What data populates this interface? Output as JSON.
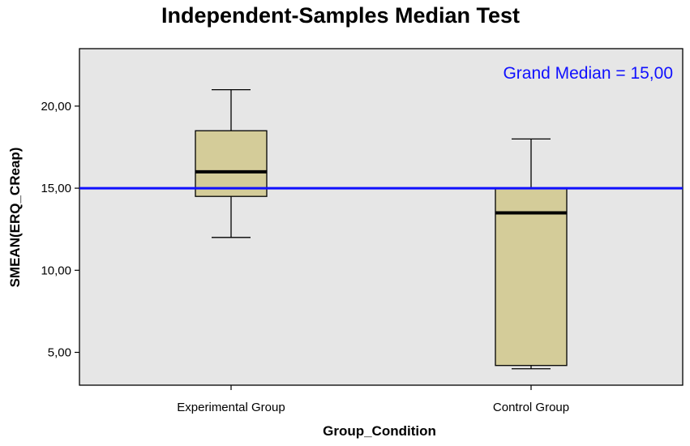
{
  "chart_data": {
    "type": "boxplot",
    "title": "Independent-Samples Median Test",
    "xlabel": "Group_Condition",
    "ylabel": "SMEAN(ERQ_CReap)",
    "ylim": [
      3.0,
      23.5
    ],
    "yticks": [
      5,
      10,
      15,
      20
    ],
    "ytick_labels": [
      "5,00",
      "10,00",
      "15,00",
      "20,00"
    ],
    "categories": [
      "Experimental Group",
      "Control Group"
    ],
    "boxes": [
      {
        "category": "Experimental Group",
        "min": 12.0,
        "q1": 14.5,
        "median": 16.0,
        "q3": 18.5,
        "max": 21.0
      },
      {
        "category": "Control Group",
        "min": 4.0,
        "q1": 4.2,
        "median": 13.5,
        "q3": 15.0,
        "max": 18.0
      }
    ],
    "reference_line": {
      "value": 15.0,
      "label": "Grand Median = 15,00",
      "color": "#1010ff"
    },
    "colors": {
      "plot_background": "#e6e6e6",
      "box_fill": "#d4cc99",
      "box_stroke": "#000000",
      "reference_line": "#1010ff"
    },
    "grid": false
  }
}
